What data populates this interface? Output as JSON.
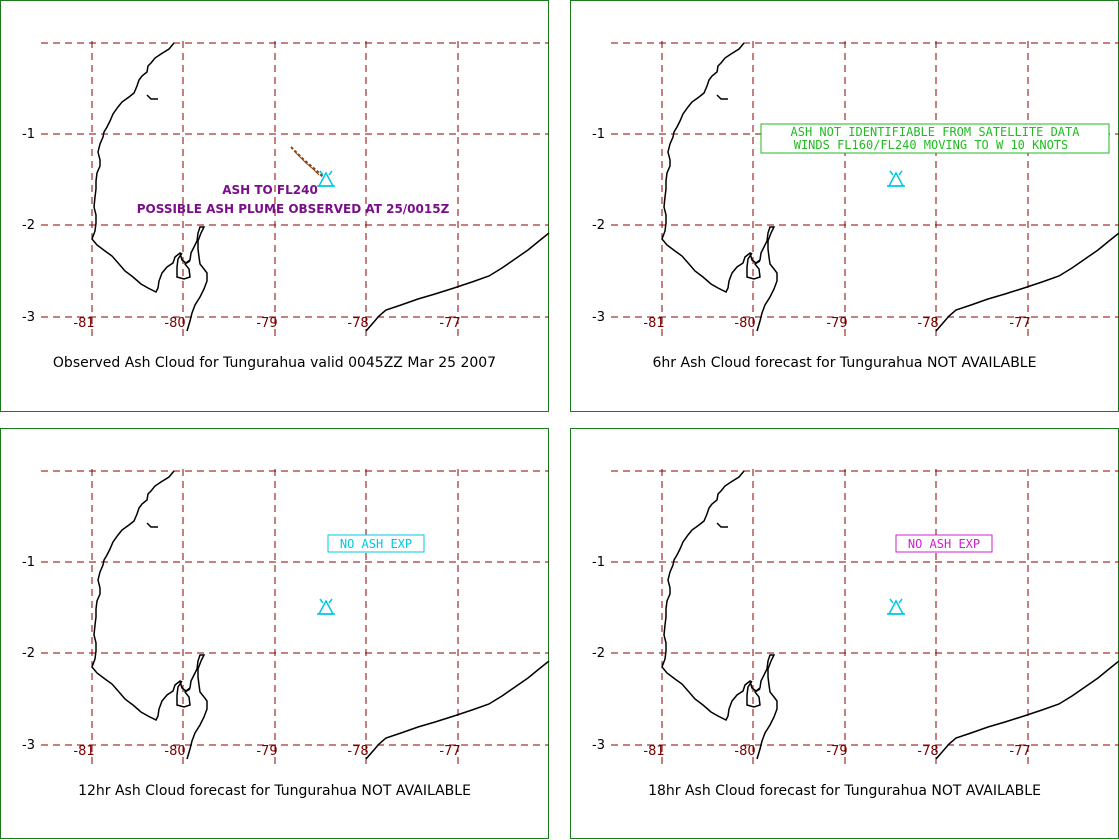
{
  "colors": {
    "frame": "#1b7a1b",
    "grid": "#8b0000",
    "coast": "#000000",
    "volcano": "#00c8e0",
    "ash_purple": "#7a0f8a",
    "plume_brown": "#8b4513",
    "green_box": "#22bb22",
    "cyan_box": "#00c8e0",
    "magenta_box": "#cc22cc"
  },
  "axes": {
    "y_ticks": [
      "-1",
      "-2",
      "-3"
    ],
    "x_ticks": [
      "-81",
      "-80",
      "-79",
      "-78",
      "-77"
    ]
  },
  "panels": [
    {
      "caption": "Observed Ash Cloud for Tungurahua valid 0045ZZ Mar 25 2007",
      "annotation_line1": "ASH TO FL240",
      "annotation_line2": "POSSIBLE ASH PLUME OBSERVED AT 25/0015Z"
    },
    {
      "caption": "6hr Ash Cloud forecast for Tungurahua NOT AVAILABLE",
      "box_line1": "ASH NOT IDENTIFIABLE FROM SATELLITE DATA",
      "box_line2": "WINDS FL160/FL240 MOVING TO W 10 KNOTS"
    },
    {
      "caption": "12hr Ash Cloud forecast for Tungurahua NOT AVAILABLE",
      "box_line1": "NO ASH EXP"
    },
    {
      "caption": "18hr Ash Cloud forecast for Tungurahua NOT AVAILABLE",
      "box_line1": "NO ASH EXP"
    }
  ]
}
